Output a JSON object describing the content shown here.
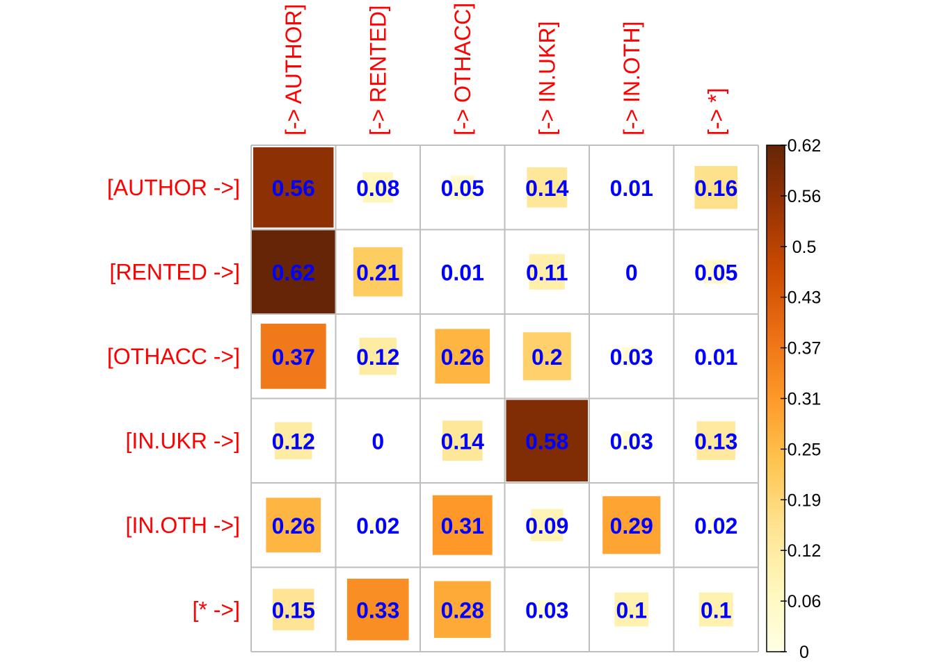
{
  "chart_data": {
    "type": "heatmap",
    "title": "",
    "row_labels": [
      "[AUTHOR ->]",
      "[RENTED ->]",
      "[OTHACC ->]",
      "[IN.UKR ->]",
      "[IN.OTH ->]",
      "[* ->]"
    ],
    "col_labels": [
      "[-> AUTHOR]",
      "[-> RENTED]",
      "[-> OTHACC]",
      "[-> IN.UKR]",
      "[-> IN.OTH]",
      "[-> *]"
    ],
    "values": [
      [
        0.56,
        0.08,
        0.05,
        0.14,
        0.01,
        0.16
      ],
      [
        0.62,
        0.21,
        0.01,
        0.11,
        0,
        0.05
      ],
      [
        0.37,
        0.12,
        0.26,
        0.2,
        0.03,
        0.01
      ],
      [
        0.12,
        0,
        0.14,
        0.58,
        0.03,
        0.13
      ],
      [
        0.26,
        0.02,
        0.31,
        0.09,
        0.29,
        0.02
      ],
      [
        0.15,
        0.33,
        0.28,
        0.03,
        0.1,
        0.1
      ]
    ],
    "color_scale": {
      "min": 0,
      "max": 0.62,
      "ticks": [
        "0",
        "0.06",
        "0.12",
        "0.19",
        "0.25",
        "0.31",
        "0.37",
        "0.43",
        "0.5",
        "0.56",
        "0.62"
      ],
      "colors": [
        "#FFFFE5",
        "#FFF7BC",
        "#FEE391",
        "#FEC44F",
        "#FE9929",
        "#EC7014",
        "#CC4C02",
        "#993404",
        "#662506"
      ]
    },
    "label_color": "#FF0000",
    "value_color": "#0000FF",
    "grid_color": "#BEBEBE",
    "legend_position": "right"
  }
}
